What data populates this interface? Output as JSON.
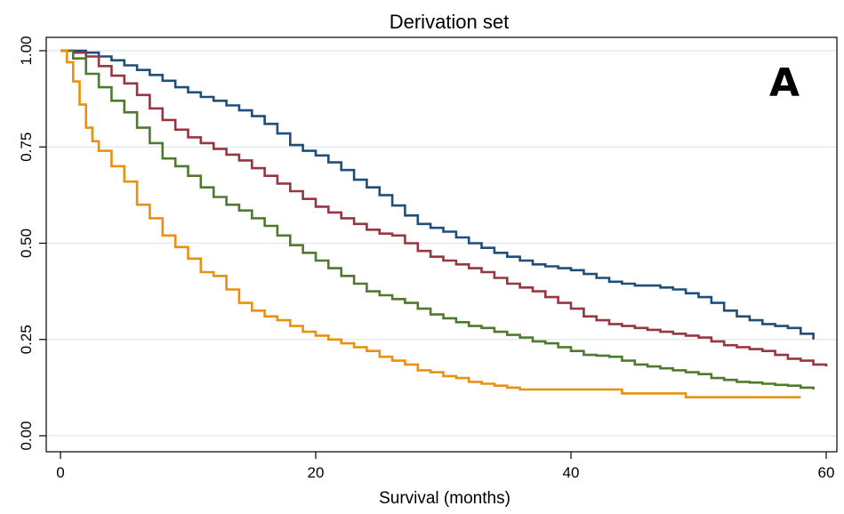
{
  "chart_data": {
    "type": "line",
    "step": true,
    "title": "Derivation set",
    "panel_label": "A",
    "xlabel": "Survival (months)",
    "ylabel": "",
    "xlim": [
      0,
      60
    ],
    "ylim": [
      0,
      1
    ],
    "xticks": [
      0,
      20,
      40,
      60
    ],
    "yticks": [
      0.0,
      0.25,
      0.5,
      0.75,
      1.0
    ],
    "xtick_labels": [
      "0",
      "20",
      "40",
      "60"
    ],
    "ytick_labels": [
      "0.00",
      "0.25",
      "0.50",
      "0.75",
      "1.00"
    ],
    "grid": "horizontal",
    "legend": "none",
    "series": [
      {
        "color": "#1f4e79",
        "x": [
          0,
          2,
          3,
          4,
          5,
          6,
          7,
          8,
          9,
          10,
          11,
          12,
          13,
          14,
          15,
          16,
          17,
          18,
          19,
          20,
          21,
          22,
          23,
          24,
          25,
          26,
          27,
          28,
          29,
          30,
          31,
          32,
          33,
          34,
          35,
          36,
          37,
          38,
          39,
          40,
          41,
          42,
          43,
          44,
          45,
          46,
          47,
          48,
          49,
          50,
          51,
          52,
          53,
          54,
          55,
          56,
          57,
          58,
          59
        ],
        "y": [
          1.0,
          0.995,
          0.985,
          0.975,
          0.962,
          0.95,
          0.937,
          0.922,
          0.905,
          0.892,
          0.88,
          0.87,
          0.858,
          0.845,
          0.83,
          0.81,
          0.785,
          0.755,
          0.74,
          0.728,
          0.71,
          0.69,
          0.665,
          0.645,
          0.625,
          0.598,
          0.572,
          0.55,
          0.54,
          0.53,
          0.515,
          0.5,
          0.488,
          0.475,
          0.465,
          0.455,
          0.445,
          0.44,
          0.435,
          0.43,
          0.42,
          0.41,
          0.4,
          0.395,
          0.39,
          0.39,
          0.385,
          0.38,
          0.37,
          0.36,
          0.345,
          0.325,
          0.31,
          0.3,
          0.29,
          0.285,
          0.28,
          0.265,
          0.25
        ]
      },
      {
        "color": "#963640",
        "x": [
          0,
          1,
          2,
          3,
          4,
          5,
          6,
          7,
          8,
          9,
          10,
          11,
          12,
          13,
          14,
          15,
          16,
          17,
          18,
          19,
          20,
          21,
          22,
          23,
          24,
          25,
          26,
          27,
          28,
          29,
          30,
          31,
          32,
          33,
          34,
          35,
          36,
          37,
          38,
          39,
          40,
          41,
          42,
          43,
          44,
          45,
          46,
          47,
          48,
          49,
          50,
          51,
          52,
          53,
          54,
          55,
          56,
          57,
          58,
          59,
          60
        ],
        "y": [
          1.0,
          0.995,
          0.985,
          0.96,
          0.935,
          0.915,
          0.885,
          0.85,
          0.82,
          0.795,
          0.775,
          0.76,
          0.745,
          0.73,
          0.715,
          0.695,
          0.675,
          0.655,
          0.635,
          0.615,
          0.595,
          0.58,
          0.565,
          0.55,
          0.535,
          0.525,
          0.52,
          0.5,
          0.48,
          0.465,
          0.455,
          0.445,
          0.435,
          0.425,
          0.41,
          0.395,
          0.385,
          0.375,
          0.36,
          0.345,
          0.33,
          0.31,
          0.3,
          0.29,
          0.285,
          0.28,
          0.275,
          0.27,
          0.265,
          0.26,
          0.255,
          0.245,
          0.235,
          0.23,
          0.225,
          0.22,
          0.21,
          0.2,
          0.195,
          0.185,
          0.18
        ]
      },
      {
        "color": "#4f7a2e",
        "x": [
          0,
          1,
          2,
          3,
          4,
          5,
          6,
          7,
          8,
          9,
          10,
          11,
          12,
          13,
          14,
          15,
          16,
          17,
          18,
          19,
          20,
          21,
          22,
          23,
          24,
          25,
          26,
          27,
          28,
          29,
          30,
          31,
          32,
          33,
          34,
          35,
          36,
          37,
          38,
          39,
          40,
          41,
          42,
          43,
          44,
          45,
          46,
          47,
          48,
          49,
          50,
          51,
          52,
          53,
          54,
          55,
          56,
          57,
          58,
          59
        ],
        "y": [
          1.0,
          0.98,
          0.94,
          0.905,
          0.87,
          0.84,
          0.8,
          0.76,
          0.72,
          0.7,
          0.675,
          0.645,
          0.62,
          0.6,
          0.585,
          0.565,
          0.545,
          0.52,
          0.495,
          0.475,
          0.455,
          0.435,
          0.415,
          0.395,
          0.375,
          0.365,
          0.355,
          0.345,
          0.33,
          0.315,
          0.305,
          0.295,
          0.285,
          0.28,
          0.27,
          0.262,
          0.255,
          0.245,
          0.24,
          0.23,
          0.22,
          0.21,
          0.208,
          0.205,
          0.195,
          0.185,
          0.18,
          0.175,
          0.17,
          0.165,
          0.16,
          0.15,
          0.145,
          0.14,
          0.138,
          0.135,
          0.132,
          0.13,
          0.125,
          0.12
        ]
      },
      {
        "color": "#e8900f",
        "x": [
          0,
          0.5,
          1,
          1.5,
          2,
          2.5,
          3,
          4,
          5,
          6,
          7,
          8,
          9,
          10,
          11,
          12,
          13,
          14,
          15,
          16,
          17,
          18,
          19,
          20,
          21,
          22,
          23,
          24,
          25,
          26,
          27,
          28,
          29,
          30,
          31,
          32,
          33,
          34,
          35,
          36,
          37,
          38,
          39,
          40,
          41,
          42,
          43,
          44,
          45,
          46,
          47,
          48,
          49,
          50,
          52,
          54,
          56,
          58
        ],
        "y": [
          1.0,
          0.97,
          0.92,
          0.86,
          0.8,
          0.765,
          0.74,
          0.7,
          0.66,
          0.6,
          0.565,
          0.52,
          0.49,
          0.46,
          0.425,
          0.415,
          0.38,
          0.345,
          0.325,
          0.31,
          0.3,
          0.285,
          0.27,
          0.26,
          0.25,
          0.24,
          0.23,
          0.22,
          0.205,
          0.195,
          0.185,
          0.17,
          0.165,
          0.155,
          0.15,
          0.14,
          0.135,
          0.13,
          0.125,
          0.12,
          0.12,
          0.12,
          0.12,
          0.12,
          0.12,
          0.12,
          0.12,
          0.11,
          0.11,
          0.11,
          0.11,
          0.11,
          0.1,
          0.1,
          0.1,
          0.1,
          0.1,
          0.1
        ]
      }
    ]
  }
}
